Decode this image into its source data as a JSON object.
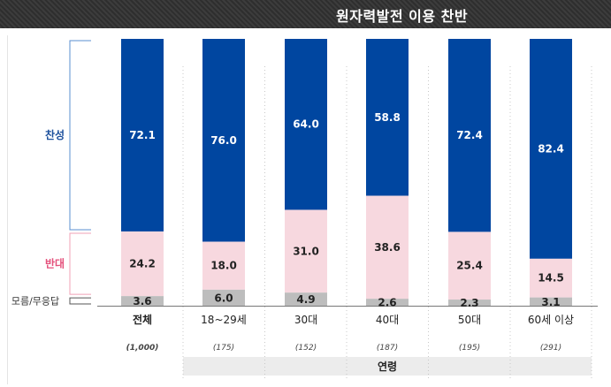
{
  "chart_data": {
    "type": "bar",
    "stacked": true,
    "title": "원자력발전 이용 찬반",
    "categories": [
      "전체",
      "18~29세",
      "30대",
      "40대",
      "50대",
      "60세 이상"
    ],
    "sample_sizes": [
      "(1,000)",
      "(175)",
      "(152)",
      "(187)",
      "(195)",
      "(291)"
    ],
    "group_label": "연령",
    "series": [
      {
        "name": "찬성",
        "color": "#0046a0",
        "values": [
          72.1,
          76.0,
          64.0,
          58.8,
          72.4,
          82.4
        ]
      },
      {
        "name": "반대",
        "color": "#f7d8df",
        "values": [
          24.2,
          18.0,
          31.0,
          38.6,
          25.4,
          14.5
        ]
      },
      {
        "name": "모름/무응답",
        "color": "#bdbdbd",
        "values": [
          3.6,
          6.0,
          4.9,
          2.6,
          2.3,
          3.1
        ]
      }
    ],
    "legend_colors": {
      "찬성": "#1b4f9c",
      "반대": "#e4517c",
      "모름/무응답": "#333333"
    },
    "ylim": [
      0,
      100
    ]
  }
}
